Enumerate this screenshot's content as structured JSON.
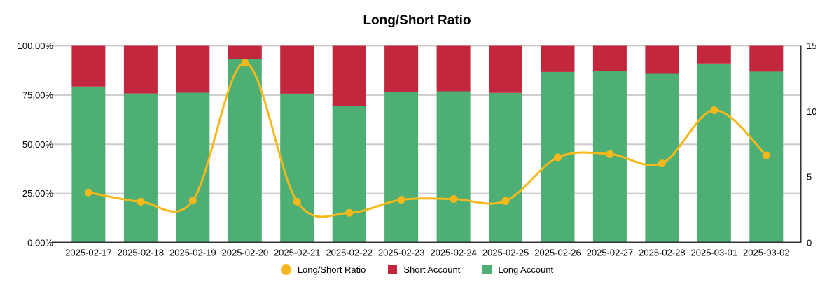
{
  "title": "Long/Short Ratio",
  "legend": {
    "items": [
      {
        "label": "Long/Short Ratio",
        "shape": "circle",
        "color": "#F7B81C"
      },
      {
        "label": "Short Account",
        "shape": "square",
        "color": "#C2273E"
      },
      {
        "label": "Long Account",
        "shape": "square",
        "color": "#4DAF73"
      }
    ]
  },
  "chart_data": {
    "type": "stacked-bar+line",
    "title": "Long/Short Ratio",
    "categories": [
      "2025-02-17",
      "2025-02-18",
      "2025-02-19",
      "2025-02-20",
      "2025-02-21",
      "2025-02-22",
      "2025-02-23",
      "2025-02-24",
      "2025-02-25",
      "2025-02-26",
      "2025-02-27",
      "2025-02-28",
      "2025-03-01",
      "2025-03-02"
    ],
    "series": [
      {
        "name": "Long Account",
        "type": "bar",
        "stack": "account",
        "axis": "left",
        "color": "#4DAF73",
        "values": [
          79.3,
          75.8,
          76.2,
          93.2,
          75.7,
          69.5,
          76.6,
          76.9,
          76.1,
          86.7,
          87.1,
          85.8,
          91.0,
          86.9
        ]
      },
      {
        "name": "Short Account",
        "type": "bar",
        "stack": "account",
        "axis": "left",
        "color": "#C2273E",
        "values": [
          20.7,
          24.2,
          23.8,
          6.8,
          24.3,
          30.5,
          23.4,
          23.1,
          23.9,
          13.3,
          12.9,
          14.2,
          9.0,
          13.1
        ]
      },
      {
        "name": "Long/Short Ratio",
        "type": "line",
        "axis": "right",
        "color": "#F7B81C",
        "values": [
          3.83,
          3.13,
          3.2,
          13.7,
          3.12,
          2.28,
          3.27,
          3.33,
          3.18,
          6.5,
          6.75,
          6.04,
          10.1,
          6.65
        ]
      }
    ],
    "left_axis": {
      "labels": [
        "0.00%",
        "25.00%",
        "50.00%",
        "75.00%",
        "100.00%"
      ],
      "values": [
        0,
        25,
        50,
        75,
        100
      ],
      "min": 0,
      "max": 100
    },
    "right_axis": {
      "labels": [
        "0",
        "5",
        "10",
        "15"
      ],
      "values": [
        0,
        5,
        10,
        15
      ],
      "min": 0,
      "max": 15
    },
    "grid": true,
    "legend_position": "bottom",
    "colors": {
      "grid_line": "#cccccc",
      "axis_line": "#333333",
      "text": "#000000",
      "background": "#ffffff"
    }
  }
}
